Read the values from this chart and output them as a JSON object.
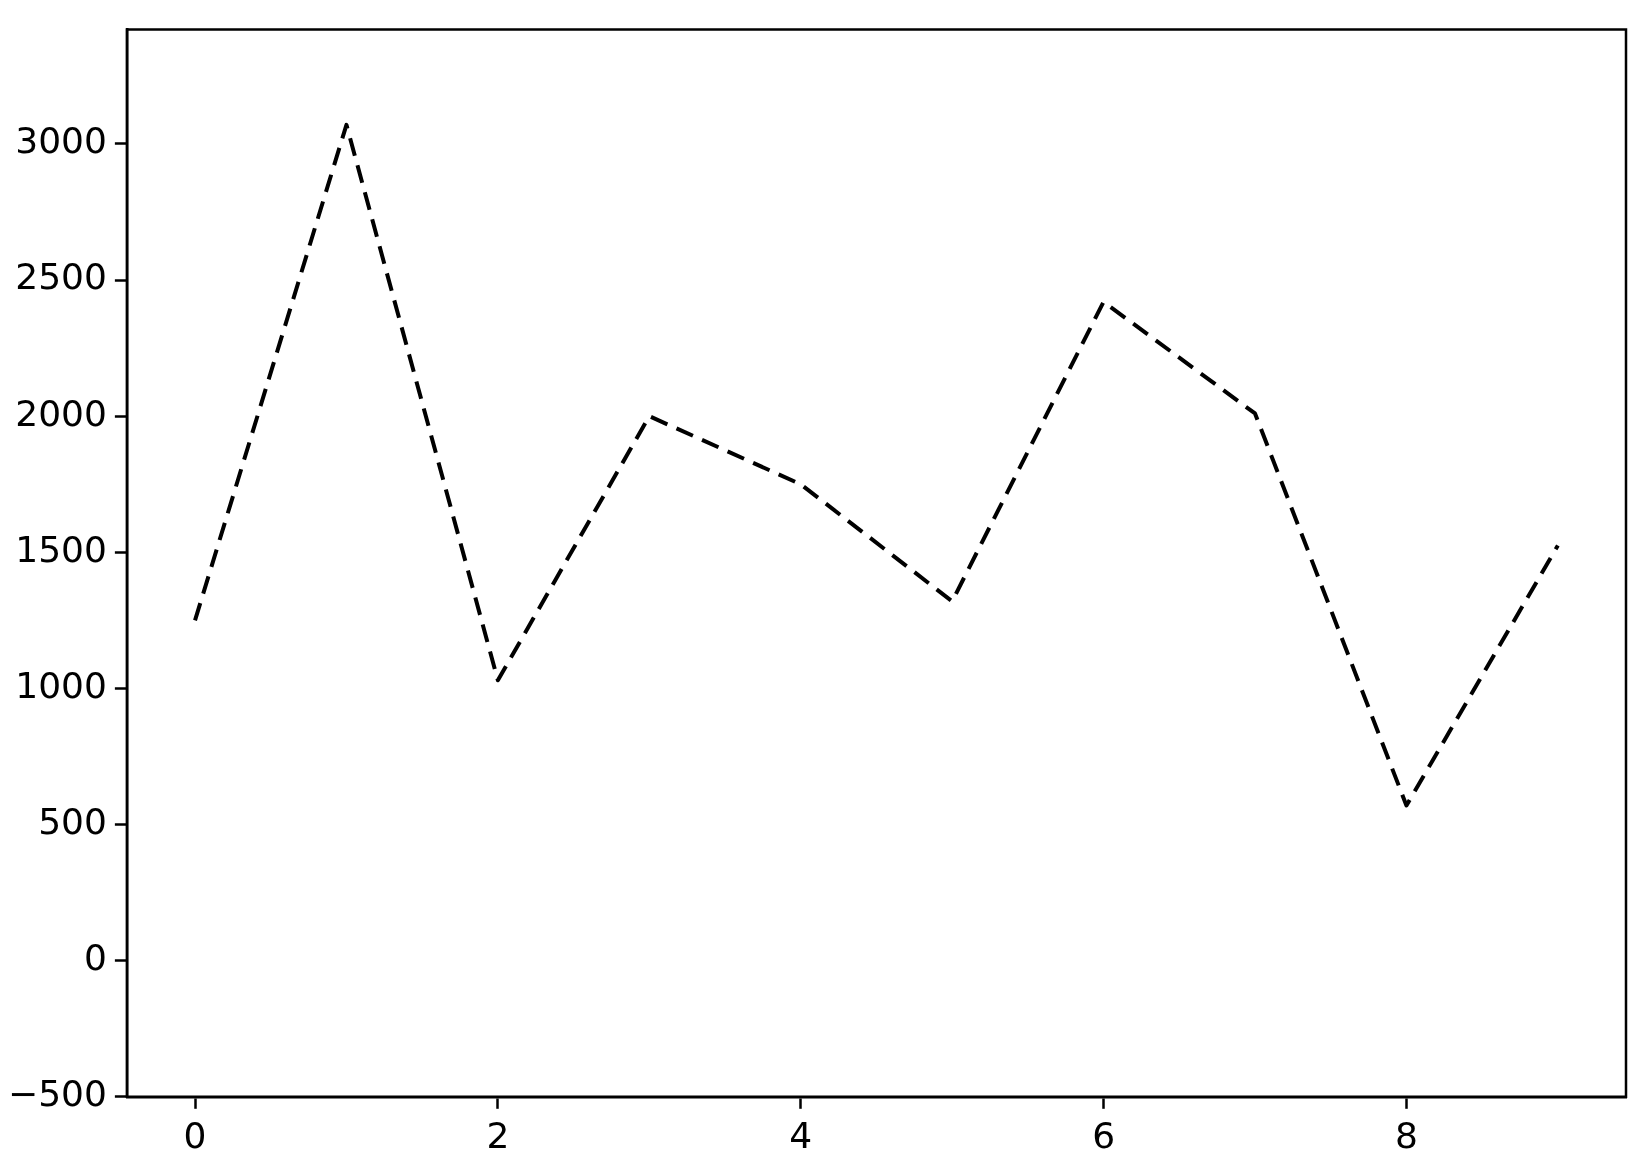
{
  "chart_data": {
    "type": "line",
    "x": [
      0,
      1,
      2,
      3,
      4,
      5,
      6,
      7,
      8,
      9
    ],
    "series": [
      {
        "color": "#000000",
        "values": [
          1250,
          3070,
          1030,
          2000,
          1750,
          1320,
          2420,
          2010,
          570,
          1525
        ]
      }
    ],
    "xlim": [
      -0.45,
      9.45
    ],
    "xticks": [
      0,
      2,
      4,
      6,
      8
    ],
    "ylim": [
      -500,
      3420
    ],
    "yticks": [
      -500,
      0,
      500,
      1000,
      1500,
      2000,
      2500,
      3000
    ],
    "grid": false,
    "legend": false,
    "marker": "none",
    "line_style": "dashed"
  }
}
